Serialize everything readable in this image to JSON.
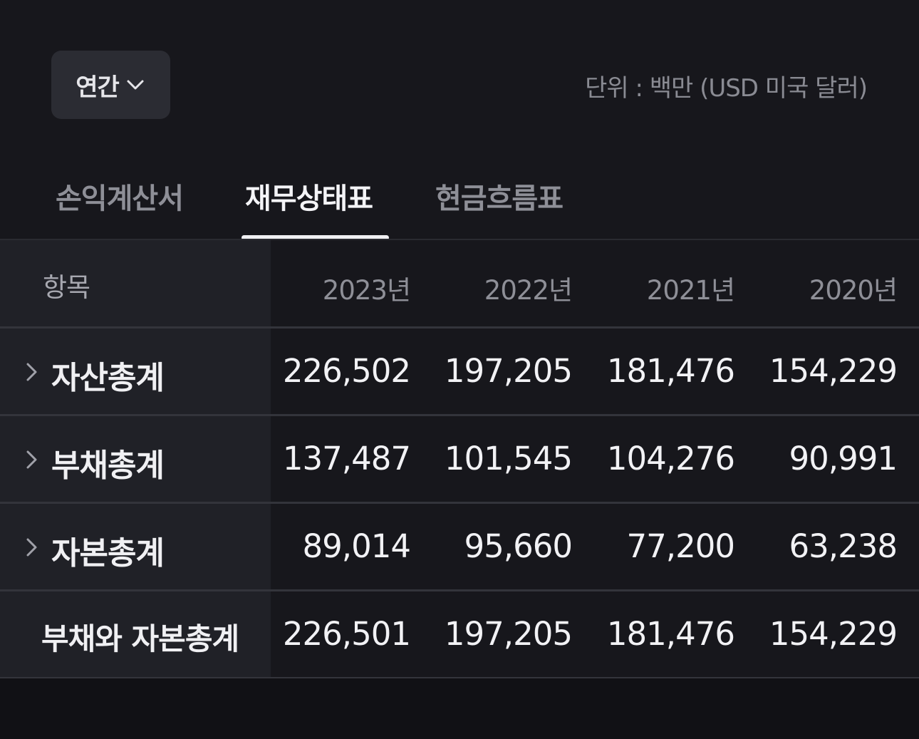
{
  "toolbar": {
    "period_label": "연간",
    "unit_text": "단위 : 백만 (USD 미국 달러)"
  },
  "tabs": [
    {
      "label": "손익계산서",
      "active": false
    },
    {
      "label": "재무상태표",
      "active": true
    },
    {
      "label": "현금흐름표",
      "active": false
    }
  ],
  "table": {
    "header": {
      "item_label": "항목",
      "years": [
        "2023년",
        "2022년",
        "2021년",
        "2020년"
      ]
    },
    "rows": [
      {
        "label": "자산총계",
        "expandable": true,
        "values": [
          "226,502",
          "197,205",
          "181,476",
          "154,229"
        ]
      },
      {
        "label": "부채총계",
        "expandable": true,
        "values": [
          "137,487",
          "101,545",
          "104,276",
          "90,991"
        ]
      },
      {
        "label": "자본총계",
        "expandable": true,
        "values": [
          "89,014",
          "95,660",
          "77,200",
          "63,238"
        ]
      },
      {
        "label": "부채와 자본총계",
        "expandable": false,
        "values": [
          "226,501",
          "197,205",
          "181,476",
          "154,229"
        ]
      }
    ]
  },
  "colors": {
    "background": "#17171c",
    "label_column": "#202127",
    "active_tab": "#f4f4f7",
    "inactive_tab": "#8e8f97"
  }
}
